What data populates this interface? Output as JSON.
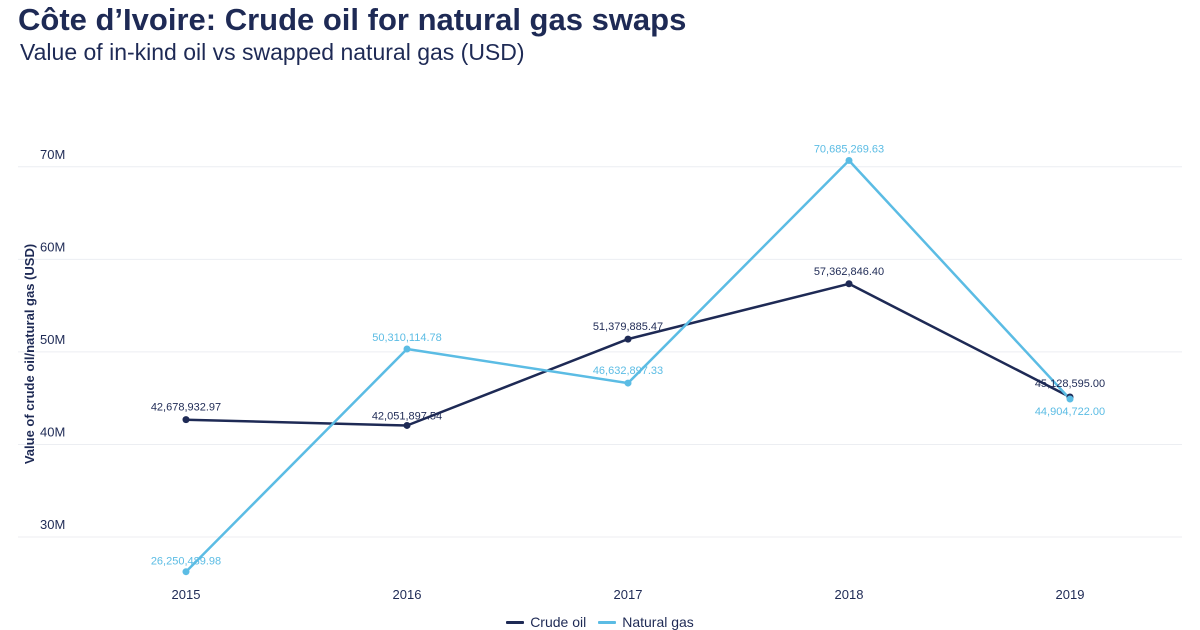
{
  "chart_data": {
    "type": "line",
    "title": "Côte d’Ivoire: Crude oil for natural gas swaps",
    "subtitle": "Value of in-kind oil vs swapped natural gas (USD)",
    "ylabel": "Value of crude oil/natural gas (USD)",
    "xlabel": "",
    "categories": [
      "2015",
      "2016",
      "2017",
      "2018",
      "2019"
    ],
    "yticks": [
      30000000,
      40000000,
      50000000,
      60000000,
      70000000
    ],
    "ytick_labels": [
      "30M",
      "40M",
      "50M",
      "60M",
      "70M"
    ],
    "ylim": [
      25000000,
      80000000
    ],
    "grid": true,
    "legend_position": "bottom",
    "series": [
      {
        "name": "Crude oil",
        "color": "#1e2a55",
        "values": [
          42678932.97,
          42051897.54,
          51379885.47,
          57362846.4,
          45128595.0
        ],
        "labels": [
          "42,678,932.97",
          "42,051,897.54",
          "51,379,885.47",
          "57,362,846.40",
          "45,128,595.00"
        ]
      },
      {
        "name": "Natural gas",
        "color": "#5bbce4",
        "values": [
          26250489.98,
          50310114.78,
          46632897.33,
          70685269.63,
          44904722.0
        ],
        "labels": [
          "26,250,489.98",
          "50,310,114.78",
          "46,632,897.33",
          "70,685,269.63",
          "44,904,722.00"
        ]
      }
    ]
  }
}
